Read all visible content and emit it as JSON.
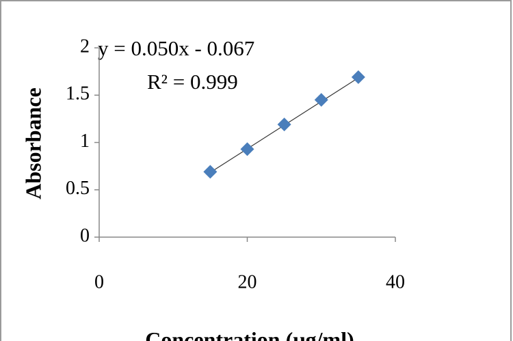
{
  "chart_data": {
    "type": "scatter",
    "x_label": "Concentration (µg/ml)",
    "y_label": "Absorbance",
    "series": [
      {
        "name": "Absorbance",
        "color": "#4a7ebb",
        "x": [
          15,
          20,
          25,
          30,
          35
        ],
        "values": [
          0.69,
          0.93,
          1.19,
          1.45,
          1.69
        ]
      }
    ],
    "trendline": {
      "slope": 0.05,
      "intercept": -0.067,
      "label": "y = 0.050x - 0.067",
      "r2_label": "R² = 0.999"
    },
    "xlim": [
      0,
      40
    ],
    "xticks": [
      0,
      20,
      40
    ],
    "ylim": [
      0,
      2
    ],
    "yticks": [
      0,
      0.5,
      1,
      1.5,
      2
    ],
    "grid": false
  }
}
